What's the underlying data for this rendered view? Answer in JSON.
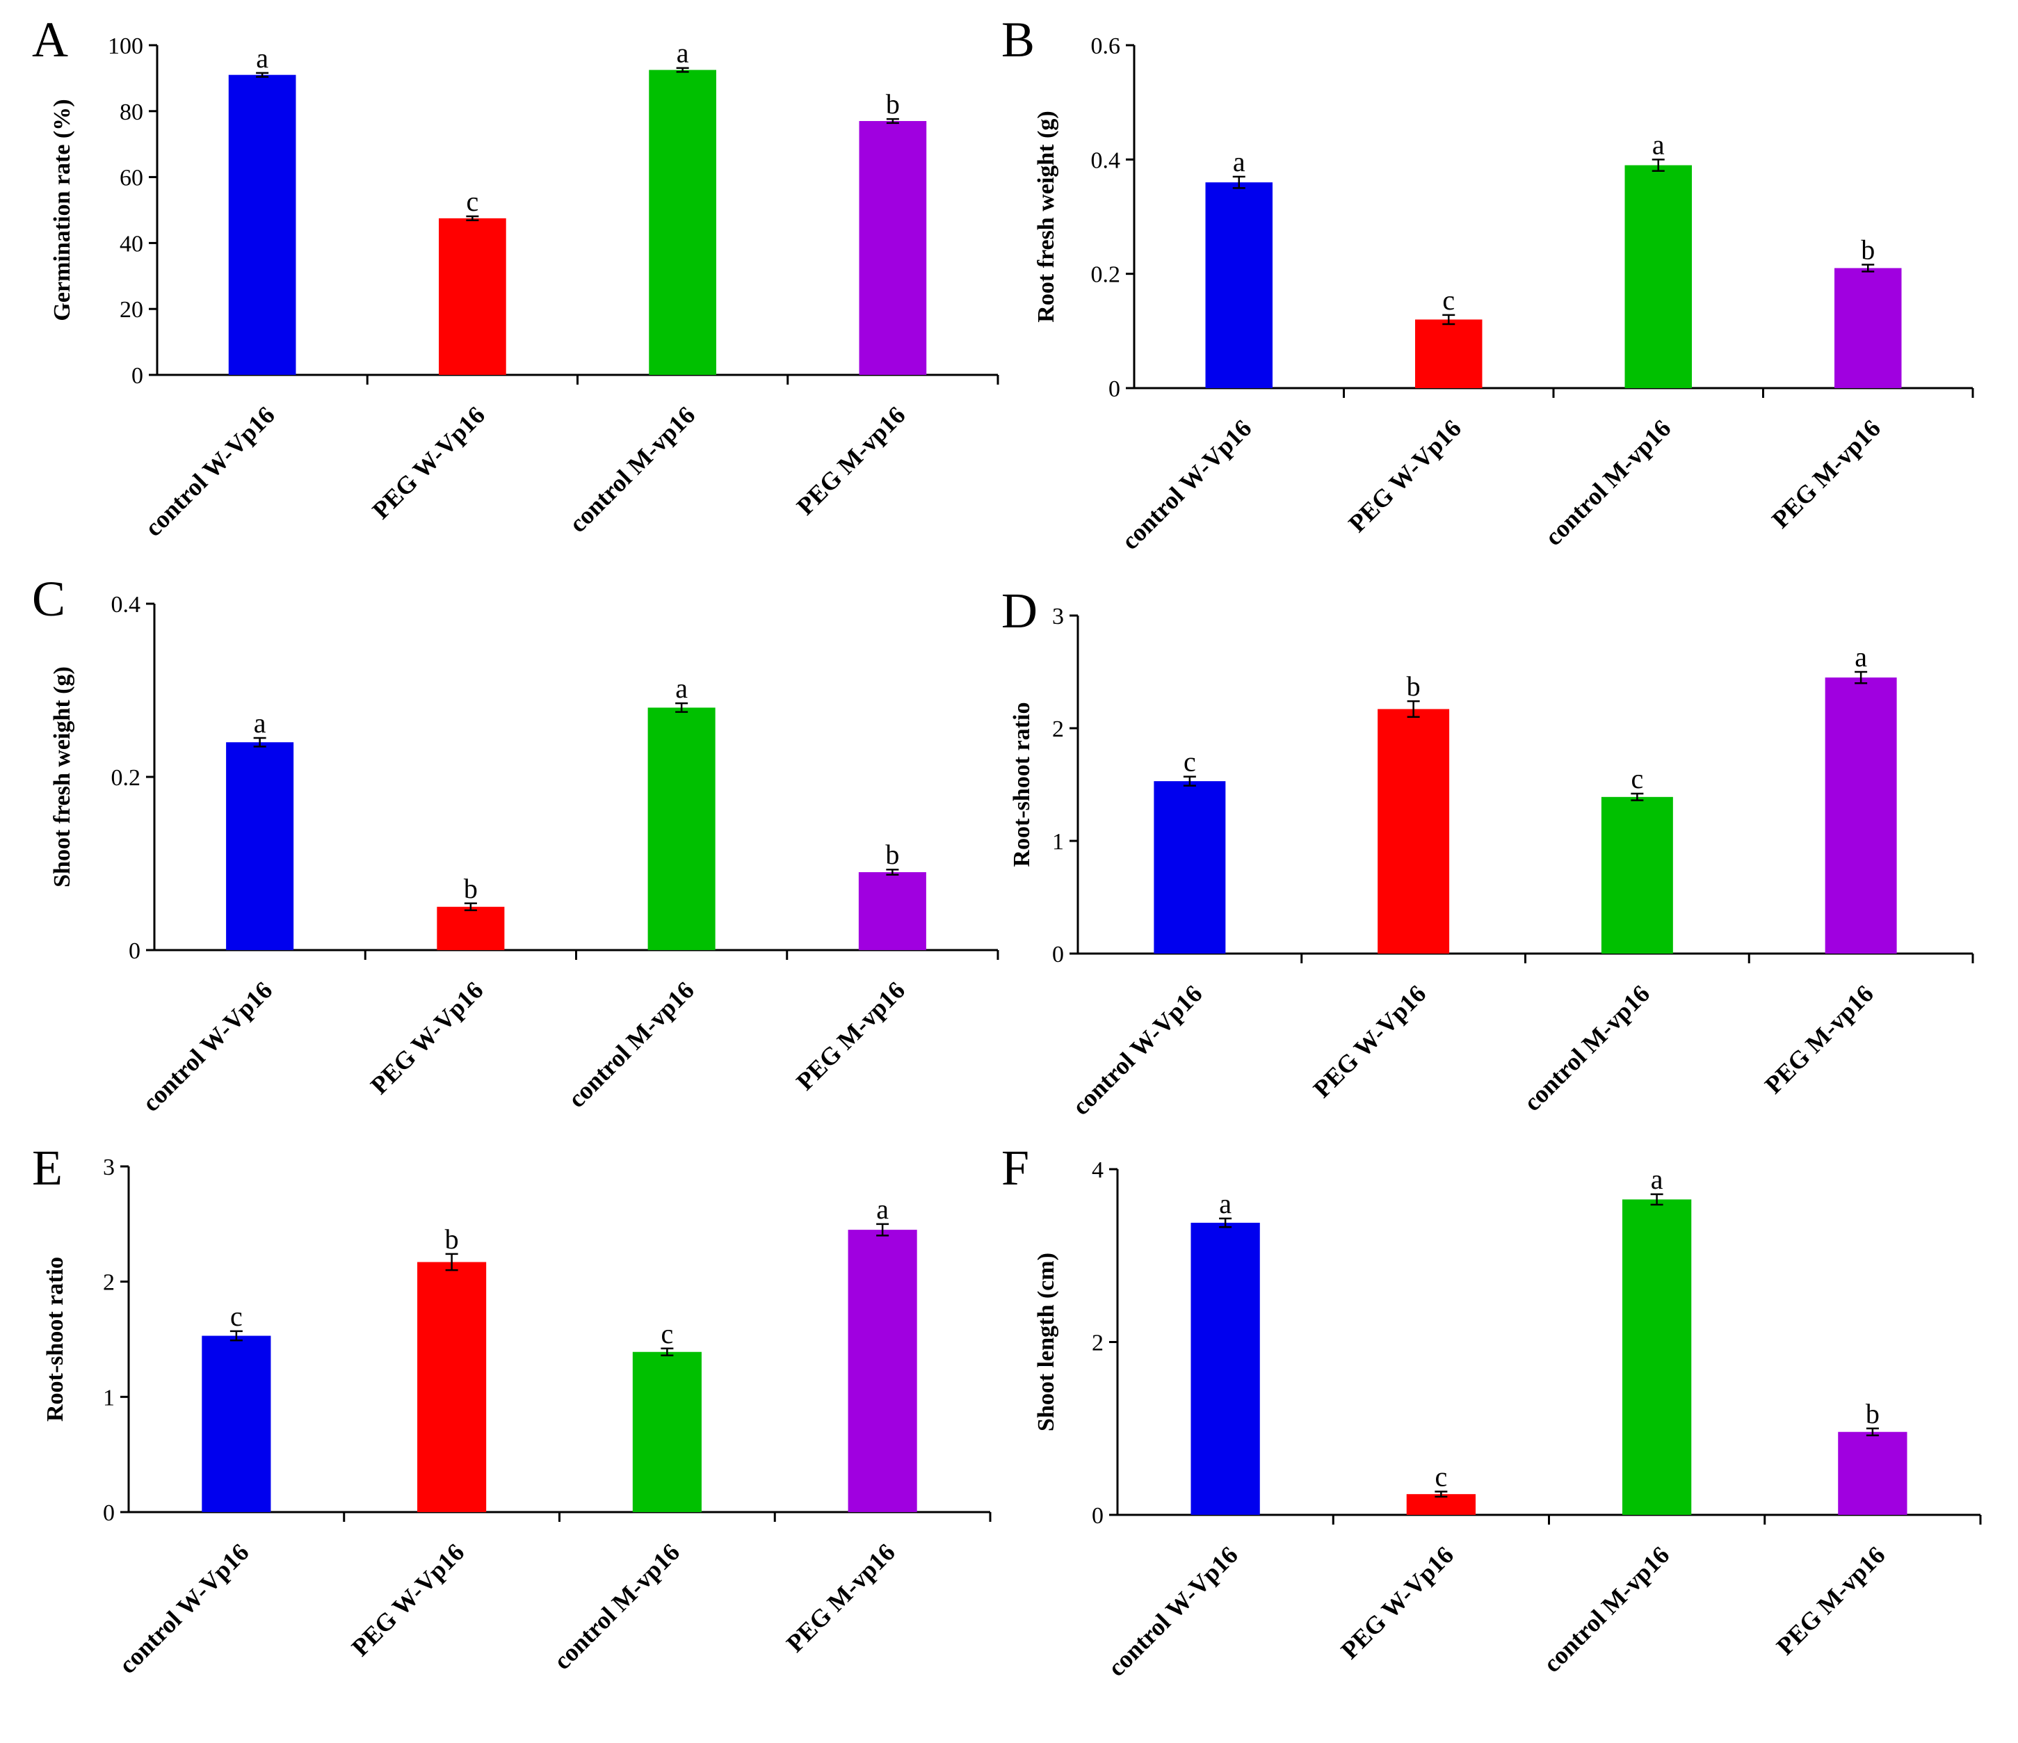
{
  "colors": {
    "bar": [
      "#0000ee",
      "#ff0000",
      "#00c000",
      "#a000e0"
    ],
    "axis": "#000000",
    "error": "#000000"
  },
  "chart_data": [
    {
      "panel": "A",
      "type": "bar",
      "categories": [
        "control W-Vp16",
        "PEG W-Vp16",
        "control M-vp16",
        "PEG M-vp16"
      ],
      "values": [
        91,
        47.5,
        92.5,
        77
      ],
      "errors": [
        0.6,
        0.6,
        0.6,
        0.6
      ],
      "significance": [
        "a",
        "c",
        "a",
        "b"
      ],
      "ylabel": "Germination rate (%)",
      "ylim": [
        0,
        100
      ],
      "yticks": [
        0,
        20,
        40,
        60,
        80,
        100
      ],
      "ytick_labels": [
        "0",
        "20",
        "40",
        "60",
        "80",
        "100"
      ]
    },
    {
      "panel": "B",
      "type": "bar",
      "categories": [
        "control W-Vp16",
        "PEG W-Vp16",
        "control M-vp16",
        "PEG M-vp16"
      ],
      "values": [
        0.36,
        0.12,
        0.39,
        0.21
      ],
      "errors": [
        0.01,
        0.008,
        0.01,
        0.006
      ],
      "significance": [
        "a",
        "c",
        "a",
        "b"
      ],
      "ylabel": "Root fresh weight (g)",
      "ylim": [
        0,
        0.6
      ],
      "yticks": [
        0,
        0.2,
        0.4,
        0.6
      ],
      "ytick_labels": [
        "0",
        "0.2",
        "0.4",
        "0.6"
      ]
    },
    {
      "panel": "C",
      "type": "bar",
      "categories": [
        "control W-Vp16",
        "PEG W-Vp16",
        "control M-vp16",
        "PEG M-vp16"
      ],
      "values": [
        0.24,
        0.05,
        0.28,
        0.09
      ],
      "errors": [
        0.005,
        0.004,
        0.005,
        0.003
      ],
      "significance": [
        "a",
        "b",
        "a",
        "b"
      ],
      "ylabel": "Shoot fresh weight (g)",
      "ylim": [
        0,
        0.4
      ],
      "yticks": [
        0,
        0.2,
        0.4
      ],
      "ytick_labels": [
        "0",
        "0.2",
        "0.4"
      ]
    },
    {
      "panel": "D",
      "type": "bar",
      "categories": [
        "control W-Vp16",
        "PEG W-Vp16",
        "control M-vp16",
        "PEG M-vp16"
      ],
      "values": [
        1.53,
        2.17,
        1.39,
        2.45
      ],
      "errors": [
        0.04,
        0.07,
        0.03,
        0.05
      ],
      "significance": [
        "c",
        "b",
        "c",
        "a"
      ],
      "ylabel": "Root-shoot ratio",
      "ylim": [
        0,
        3
      ],
      "yticks": [
        0,
        1,
        2,
        3
      ],
      "ytick_labels": [
        "0",
        "1",
        "2",
        "3"
      ]
    },
    {
      "panel": "E",
      "type": "bar",
      "categories": [
        "control W-Vp16",
        "PEG W-Vp16",
        "control M-vp16",
        "PEG M-vp16"
      ],
      "values": [
        1.53,
        2.17,
        1.39,
        2.45
      ],
      "errors": [
        0.04,
        0.07,
        0.03,
        0.05
      ],
      "significance": [
        "c",
        "b",
        "c",
        "a"
      ],
      "ylabel": "Root-shoot ratio",
      "ylim": [
        0,
        3
      ],
      "yticks": [
        0,
        1,
        2,
        3
      ],
      "ytick_labels": [
        "0",
        "1",
        "2",
        "3"
      ]
    },
    {
      "panel": "F",
      "type": "bar",
      "categories": [
        "control W-Vp16",
        "PEG W-Vp16",
        "control M-vp16",
        "PEG M-vp16"
      ],
      "values": [
        3.38,
        0.24,
        3.65,
        0.96
      ],
      "errors": [
        0.05,
        0.03,
        0.06,
        0.04
      ],
      "significance": [
        "a",
        "c",
        "a",
        "b"
      ],
      "ylabel": "Shoot length (cm)",
      "ylim": [
        0,
        4
      ],
      "yticks": [
        0,
        2,
        4
      ],
      "ytick_labels": [
        "0",
        "2",
        "4"
      ]
    }
  ]
}
